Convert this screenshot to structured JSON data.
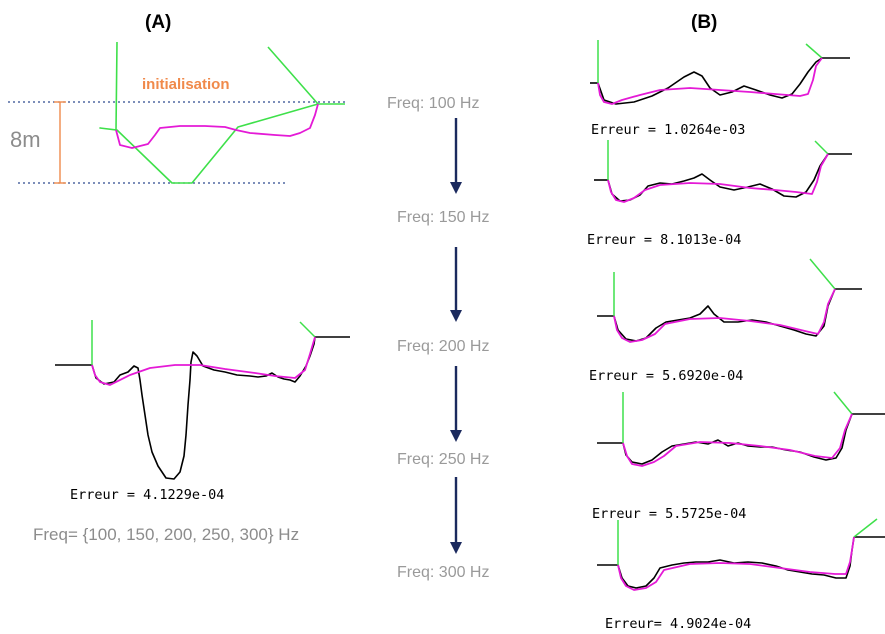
{
  "panels": {
    "a": {
      "label": "(A)"
    },
    "b": {
      "label": "(B)"
    }
  },
  "panel_a": {
    "initialisation_label": "initialisation",
    "depth_label": "8m",
    "final_error": "Erreur = 4.1229e-04",
    "frequency_set": "Freq= {100, 150, 200, 250, 300} Hz"
  },
  "frequency_sequence": [
    "Freq: 100 Hz",
    "Freq: 150 Hz",
    "Freq: 200 Hz",
    "Freq: 250 Hz",
    "Freq: 300 Hz"
  ],
  "panel_b_errors": [
    "Erreur = 1.0264e-03",
    "Erreur = 8.1013e-04",
    "Erreur = 5.6920e-04",
    "Erreur = 5.5725e-04",
    "Erreur= 4.9024e-04"
  ],
  "colors": {
    "true_profile": "#000000",
    "inverted_profile": "#e41ad6",
    "initial_model": "#3ee04a",
    "arrows": "#1b2a5e",
    "annotation": "#f08a4b"
  }
}
